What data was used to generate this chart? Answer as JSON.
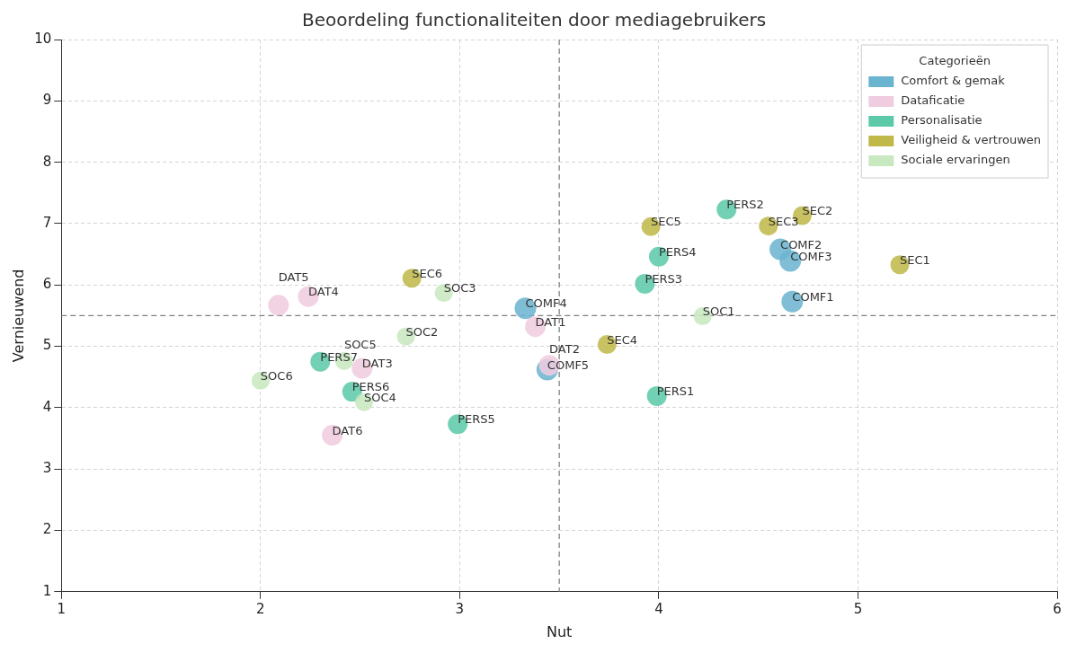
{
  "chart_data": {
    "type": "scatter",
    "title": "Beoordeling functionaliteiten door mediagebruikers",
    "xlabel": "Nut",
    "ylabel": "Vernieuwend",
    "legend_title": "Categorieën",
    "legend": "top right",
    "grid": true,
    "marker": "circle",
    "xlim": [
      1,
      6
    ],
    "xticks": [
      1,
      2,
      3,
      4,
      5,
      6
    ],
    "ylim": [
      1,
      10
    ],
    "yticks": [
      1,
      2,
      3,
      4,
      5,
      6,
      7,
      8,
      9,
      10
    ],
    "series": [
      {
        "name": "Comfort & gemak",
        "color": "#6bb4d0",
        "x": [
          4.67,
          4.61,
          4.66,
          3.33,
          3.44
        ],
        "values": [
          5.73,
          6.58,
          6.39,
          5.62,
          4.62
        ]
      },
      {
        "name": "Dataficatie",
        "color": "#f0cce0",
        "x": [
          3.38,
          3.45,
          2.51,
          2.24,
          2.09,
          2.36
        ],
        "values": [
          5.32,
          4.69,
          4.64,
          5.81,
          5.67,
          3.55
        ]
      },
      {
        "name": "Personalisatie",
        "color": "#5ccaa8",
        "x": [
          3.99,
          4.34,
          3.93,
          4.0,
          2.99,
          2.46,
          2.3
        ],
        "values": [
          4.19,
          7.23,
          6.02,
          6.46,
          3.73,
          4.26,
          4.75
        ]
      },
      {
        "name": "Veiligheid & vertrouwen",
        "color": "#c0b94a",
        "x": [
          5.21,
          4.72,
          4.55,
          3.74,
          3.96,
          2.76
        ],
        "values": [
          6.33,
          7.13,
          6.96,
          5.03,
          6.95,
          6.11
        ]
      },
      {
        "name": "Sociale ervaringen",
        "color": "#c8e8c0",
        "x": [
          4.22,
          2.73,
          2.92,
          2.52,
          2.42,
          2.0
        ],
        "values": [
          5.49,
          5.16,
          5.87,
          4.09,
          4.76,
          4.44
        ]
      }
    ],
    "ref_lines": [
      {
        "axis": "x",
        "value": 3.5,
        "line_style": "dashed",
        "color": "#808080"
      },
      {
        "axis": "y",
        "value": 5.5,
        "line_style": "dashed",
        "color": "#808080"
      }
    ],
    "annotations": [
      {
        "text": "COMF1",
        "x": 4.67,
        "y": 5.73
      },
      {
        "text": "COMF2",
        "x": 4.61,
        "y": 6.58
      },
      {
        "text": "COMF3",
        "x": 4.66,
        "y": 6.39
      },
      {
        "text": "COMF4",
        "x": 3.33,
        "y": 5.62
      },
      {
        "text": "COMF5",
        "x": 3.44,
        "y": 4.62
      },
      {
        "text": "DAT1",
        "x": 3.38,
        "y": 5.32
      },
      {
        "text": "DAT2",
        "x": 3.45,
        "y": 4.69
      },
      {
        "text": "DAT3",
        "x": 2.51,
        "y": 4.64
      },
      {
        "text": "DAT4",
        "x": 2.24,
        "y": 5.81
      },
      {
        "text": "DAT5",
        "x": 2.09,
        "y": 5.67
      },
      {
        "text": "DAT6",
        "x": 2.36,
        "y": 3.55
      },
      {
        "text": "PERS1",
        "x": 3.99,
        "y": 4.19
      },
      {
        "text": "PERS2",
        "x": 4.34,
        "y": 7.23
      },
      {
        "text": "PERS3",
        "x": 3.93,
        "y": 6.02
      },
      {
        "text": "PERS4",
        "x": 4.0,
        "y": 6.46
      },
      {
        "text": "PERS5",
        "x": 2.99,
        "y": 3.73
      },
      {
        "text": "PERS6",
        "x": 2.46,
        "y": 4.26
      },
      {
        "text": "PERS7",
        "x": 2.3,
        "y": 4.75
      },
      {
        "text": "SEC1",
        "x": 5.21,
        "y": 6.33
      },
      {
        "text": "SEC2",
        "x": 4.72,
        "y": 7.13
      },
      {
        "text": "SEC3",
        "x": 4.55,
        "y": 6.96
      },
      {
        "text": "SEC4",
        "x": 3.74,
        "y": 5.03
      },
      {
        "text": "SEC5",
        "x": 3.96,
        "y": 6.95
      },
      {
        "text": "SEC6",
        "x": 2.76,
        "y": 6.11
      },
      {
        "text": "SOC1",
        "x": 4.22,
        "y": 5.49
      },
      {
        "text": "SOC2",
        "x": 2.73,
        "y": 5.16
      },
      {
        "text": "SOC3",
        "x": 2.92,
        "y": 5.87
      },
      {
        "text": "SOC4",
        "x": 2.52,
        "y": 4.09
      },
      {
        "text": "SOC5",
        "x": 2.42,
        "y": 4.76
      },
      {
        "text": "SOC6",
        "x": 2.0,
        "y": 4.44
      }
    ]
  }
}
